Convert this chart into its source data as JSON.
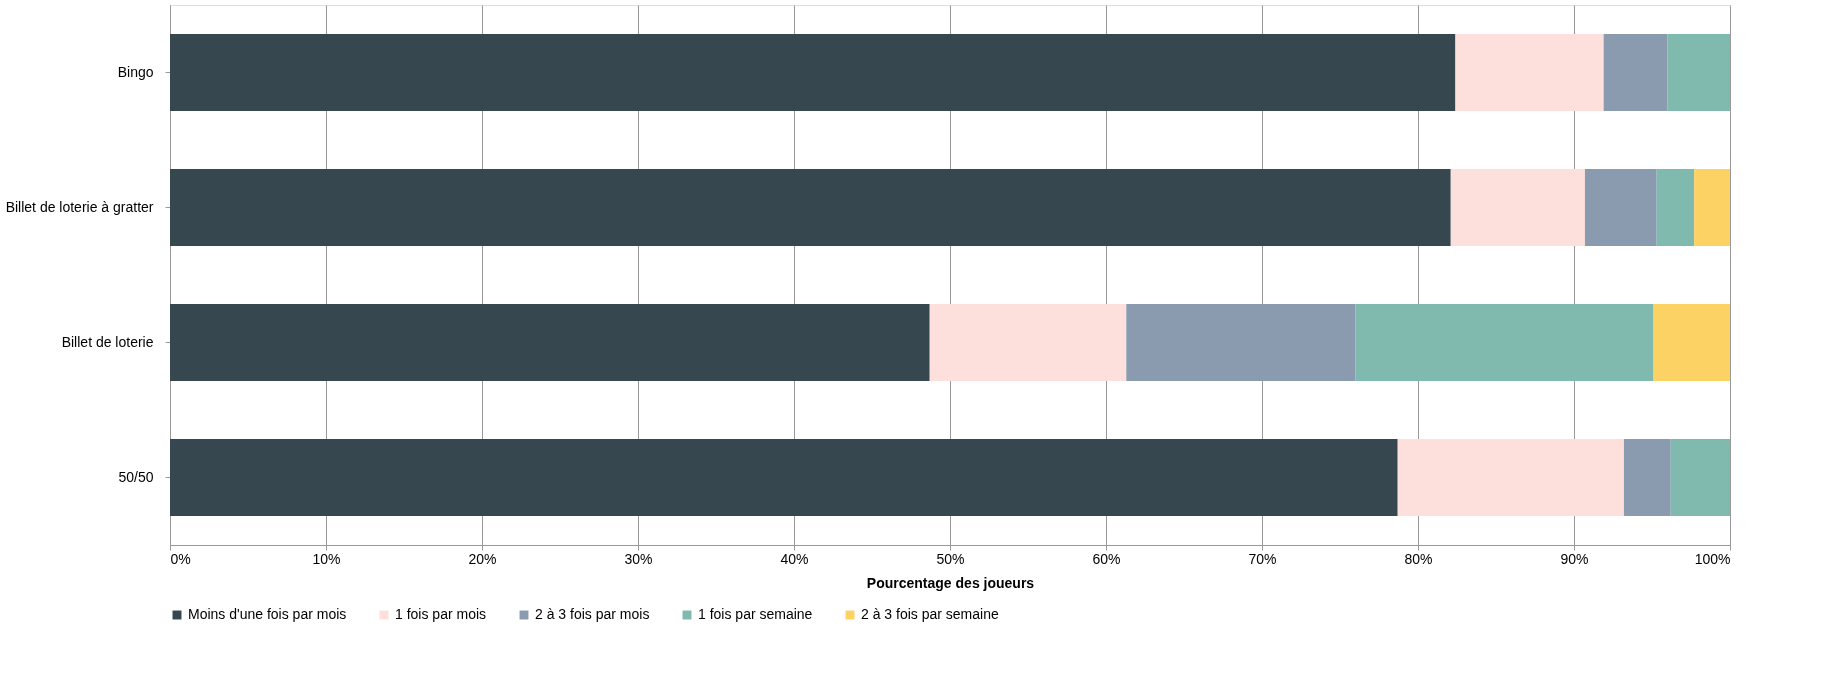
{
  "chart_data": {
    "type": "bar",
    "orientation": "horizontal",
    "stacked": true,
    "xlabel": "Pourcentage des joueurs",
    "categories": [
      "Bingo",
      "Billet de loterie à gratter",
      "Billet de loterie",
      "50/50"
    ],
    "series": [
      {
        "name": "Moins d'une fois par mois",
        "color": "#37474f",
        "values": [
          82.4,
          82.1,
          48.7,
          78.7
        ]
      },
      {
        "name": "1 fois par mois",
        "color": "#fde0dc",
        "values": [
          9.5,
          8.6,
          12.6,
          14.5
        ]
      },
      {
        "name": "2 à 3 fois par mois",
        "color": "#8a9bb0",
        "values": [
          4.1,
          4.6,
          14.7,
          3.0
        ]
      },
      {
        "name": "1 fois par semaine",
        "color": "#80b9ad",
        "values": [
          4.0,
          2.4,
          19.1,
          3.8
        ]
      },
      {
        "name": "2 à 3 fois par semaine",
        "color": "#fcd265",
        "values": [
          0,
          2.3,
          4.9,
          0
        ]
      }
    ],
    "xlim": [
      0,
      100
    ],
    "xticks": [
      {
        "value": 0,
        "label": "0%"
      },
      {
        "value": 10,
        "label": "10%"
      },
      {
        "value": 20,
        "label": "20%"
      },
      {
        "value": 30,
        "label": "30%"
      },
      {
        "value": 40,
        "label": "40%"
      },
      {
        "value": 50,
        "label": "50%"
      },
      {
        "value": 60,
        "label": "60%"
      },
      {
        "value": 70,
        "label": "70%"
      },
      {
        "value": 80,
        "label": "80%"
      },
      {
        "value": 90,
        "label": "90%"
      },
      {
        "value": 100,
        "label": "100%"
      }
    ],
    "grid": "x",
    "legend": "bottom"
  }
}
